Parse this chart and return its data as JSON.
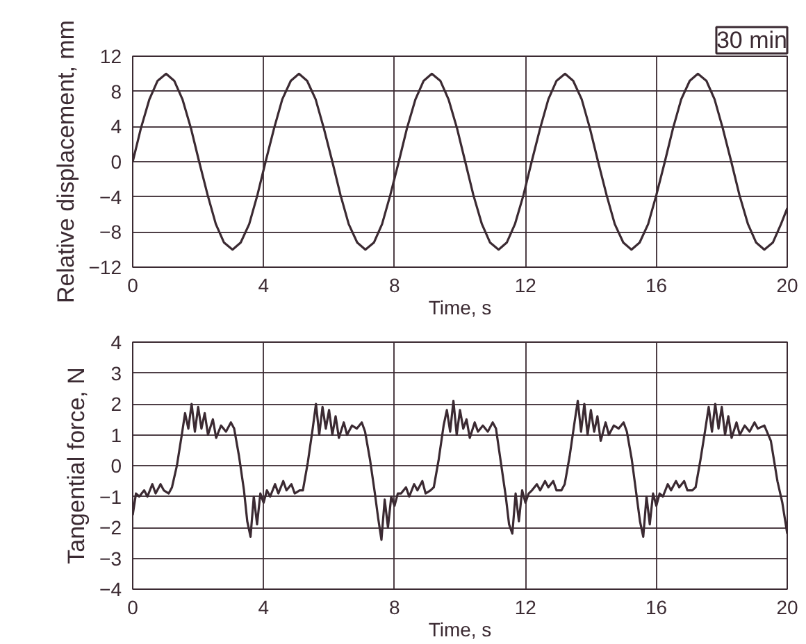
{
  "chart_data": [
    {
      "type": "line",
      "xlabel": "Time, s",
      "ylabel": "Relative displacement, mm",
      "annotations": [
        "30 min"
      ],
      "xlim": [
        0,
        20
      ],
      "xticks": [
        0,
        4,
        8,
        12,
        16,
        20
      ],
      "ylim": [
        -12,
        12
      ],
      "yticks": [
        -12,
        -8,
        -4,
        0,
        4,
        8,
        12
      ],
      "grid": true,
      "series": [
        {
          "color": "#3b2a32",
          "x": [
            0,
            0.25,
            0.51,
            0.76,
            1.02,
            1.27,
            1.52,
            1.78,
            2.03,
            2.29,
            2.54,
            2.79,
            3.05,
            3.3,
            3.56,
            3.81,
            4.06,
            4.32,
            4.57,
            4.83,
            5.08,
            5.33,
            5.59,
            5.84,
            6.1,
            6.35,
            6.6,
            6.86,
            7.11,
            7.37,
            7.62,
            7.87,
            8.13,
            8.38,
            8.64,
            8.89,
            9.14,
            9.4,
            9.65,
            9.91,
            10.16,
            10.41,
            10.67,
            10.92,
            11.18,
            11.43,
            11.68,
            11.94,
            12.19,
            12.45,
            12.7,
            12.95,
            13.21,
            13.46,
            13.72,
            13.97,
            14.22,
            14.48,
            14.73,
            14.99,
            15.24,
            15.49,
            15.75,
            16.0,
            16.26,
            16.51,
            16.76,
            17.02,
            17.27,
            17.53,
            17.78,
            18.03,
            18.29,
            18.54,
            18.8,
            19.05,
            19.3,
            19.56,
            19.81,
            20
          ],
          "values": [
            0,
            3.8,
            7.1,
            9.2,
            10,
            9.2,
            7.1,
            3.8,
            0,
            -3.8,
            -7.1,
            -9.2,
            -10,
            -9.2,
            -7.1,
            -3.8,
            0,
            3.8,
            7.1,
            9.2,
            10,
            9.2,
            7.1,
            3.8,
            0,
            -3.8,
            -7.1,
            -9.2,
            -10,
            -9.2,
            -7.1,
            -3.8,
            0,
            3.8,
            7.1,
            9.2,
            10,
            9.2,
            7.1,
            3.8,
            0,
            -3.8,
            -7.1,
            -9.2,
            -10,
            -9.2,
            -7.1,
            -3.8,
            0,
            3.8,
            7.1,
            9.2,
            10,
            9.2,
            7.1,
            3.8,
            0,
            -3.8,
            -7.1,
            -9.2,
            -10,
            -9.2,
            -7.1,
            -3.8,
            0,
            3.8,
            7.1,
            9.2,
            10,
            9.2,
            7.1,
            3.8,
            0,
            -3.8,
            -7.1,
            -9.2,
            -10,
            -9.2,
            -7.1,
            -5.3
          ]
        }
      ]
    },
    {
      "type": "line",
      "xlabel": "Time, s",
      "ylabel": "Tangential force, N",
      "xlim": [
        0,
        20
      ],
      "xticks": [
        0,
        4,
        8,
        12,
        16,
        20
      ],
      "ylim": [
        -4,
        4
      ],
      "yticks": [
        -4,
        -3,
        -2,
        -1,
        0,
        1,
        2,
        3,
        4
      ],
      "grid": true,
      "series": [
        {
          "color": "#3b2a32",
          "x": [
            0,
            0.1,
            0.2,
            0.35,
            0.45,
            0.6,
            0.7,
            0.85,
            0.95,
            1.1,
            1.2,
            1.35,
            1.5,
            1.6,
            1.7,
            1.8,
            1.9,
            2.0,
            2.1,
            2.2,
            2.3,
            2.45,
            2.55,
            2.7,
            2.85,
            3.0,
            3.1,
            3.25,
            3.4,
            3.5,
            3.6,
            3.7,
            3.8,
            3.9,
            4,
            4.1,
            4.2,
            4.35,
            4.45,
            4.6,
            4.7,
            4.85,
            4.95,
            5.1,
            5.2,
            5.35,
            5.5,
            5.6,
            5.7,
            5.8,
            5.9,
            6.0,
            6.1,
            6.2,
            6.3,
            6.45,
            6.55,
            6.7,
            6.85,
            7.0,
            7.1,
            7.25,
            7.4,
            7.5,
            7.6,
            7.7,
            7.8,
            7.9,
            8,
            8.1,
            8.2,
            8.35,
            8.45,
            8.6,
            8.7,
            8.85,
            8.95,
            9.1,
            9.2,
            9.35,
            9.5,
            9.6,
            9.7,
            9.8,
            9.9,
            10.0,
            10.1,
            10.2,
            10.3,
            10.45,
            10.55,
            10.7,
            10.85,
            11.0,
            11.1,
            11.25,
            11.4,
            11.5,
            11.6,
            11.7,
            11.8,
            11.9,
            12,
            12.1,
            12.2,
            12.35,
            12.45,
            12.6,
            12.7,
            12.85,
            12.95,
            13.1,
            13.2,
            13.35,
            13.5,
            13.6,
            13.7,
            13.8,
            13.9,
            14.0,
            14.1,
            14.2,
            14.3,
            14.45,
            14.55,
            14.7,
            14.85,
            15.0,
            15.1,
            15.25,
            15.4,
            15.5,
            15.6,
            15.7,
            15.8,
            15.9,
            16,
            16.1,
            16.2,
            16.35,
            16.45,
            16.6,
            16.7,
            16.85,
            16.95,
            17.1,
            17.2,
            17.35,
            17.5,
            17.6,
            17.7,
            17.8,
            17.9,
            18.0,
            18.1,
            18.2,
            18.3,
            18.45,
            18.55,
            18.7,
            18.85,
            19.0,
            19.1,
            19.3,
            19.5,
            19.7,
            19.85,
            20.0
          ],
          "values": [
            -1.6,
            -0.9,
            -1.0,
            -0.8,
            -1.0,
            -0.6,
            -0.9,
            -0.6,
            -0.8,
            -0.9,
            -0.7,
            0.0,
            1.0,
            1.7,
            1.2,
            2.0,
            1.1,
            1.9,
            1.2,
            1.7,
            1.0,
            1.5,
            0.9,
            1.3,
            1.1,
            1.4,
            1.2,
            0.3,
            -0.8,
            -1.8,
            -2.3,
            -1.0,
            -1.9,
            -0.9,
            -1.2,
            -0.8,
            -1.0,
            -0.6,
            -0.9,
            -0.5,
            -0.8,
            -0.6,
            -0.9,
            -0.8,
            -0.8,
            0.1,
            1.2,
            2.0,
            1.0,
            1.9,
            1.2,
            1.8,
            1.0,
            1.6,
            0.9,
            1.4,
            1.0,
            1.3,
            1.2,
            1.4,
            1.1,
            0.2,
            -0.9,
            -1.7,
            -2.4,
            -1.1,
            -2.0,
            -1.0,
            -1.3,
            -0.9,
            -0.9,
            -0.7,
            -1.0,
            -0.6,
            -0.8,
            -0.5,
            -0.9,
            -0.8,
            -0.7,
            0.2,
            1.3,
            1.8,
            1.1,
            2.1,
            1.0,
            1.8,
            1.2,
            1.5,
            0.9,
            1.4,
            1.1,
            1.3,
            1.1,
            1.4,
            1.2,
            0.1,
            -1.0,
            -1.9,
            -2.2,
            -0.9,
            -1.8,
            -0.8,
            -1.2,
            -0.9,
            -0.8,
            -0.6,
            -0.8,
            -0.5,
            -0.7,
            -0.5,
            -0.8,
            -0.8,
            -0.6,
            0.3,
            1.4,
            2.1,
            1.1,
            2.0,
            1.0,
            1.8,
            1.1,
            1.6,
            0.8,
            1.4,
            1.0,
            1.3,
            1.2,
            1.4,
            1.1,
            0.2,
            -1.0,
            -1.8,
            -2.3,
            -1.0,
            -1.9,
            -0.9,
            -1.3,
            -0.9,
            -1.0,
            -0.6,
            -0.8,
            -0.5,
            -0.7,
            -0.5,
            -0.8,
            -0.8,
            -0.7,
            0.2,
            1.2,
            1.9,
            1.1,
            2.0,
            1.2,
            1.9,
            1.0,
            1.6,
            0.9,
            1.4,
            1.0,
            1.3,
            1.1,
            1.4,
            1.2,
            1.3,
            0.8,
            -0.5,
            -1.2,
            -2.2
          ]
        }
      ]
    }
  ]
}
